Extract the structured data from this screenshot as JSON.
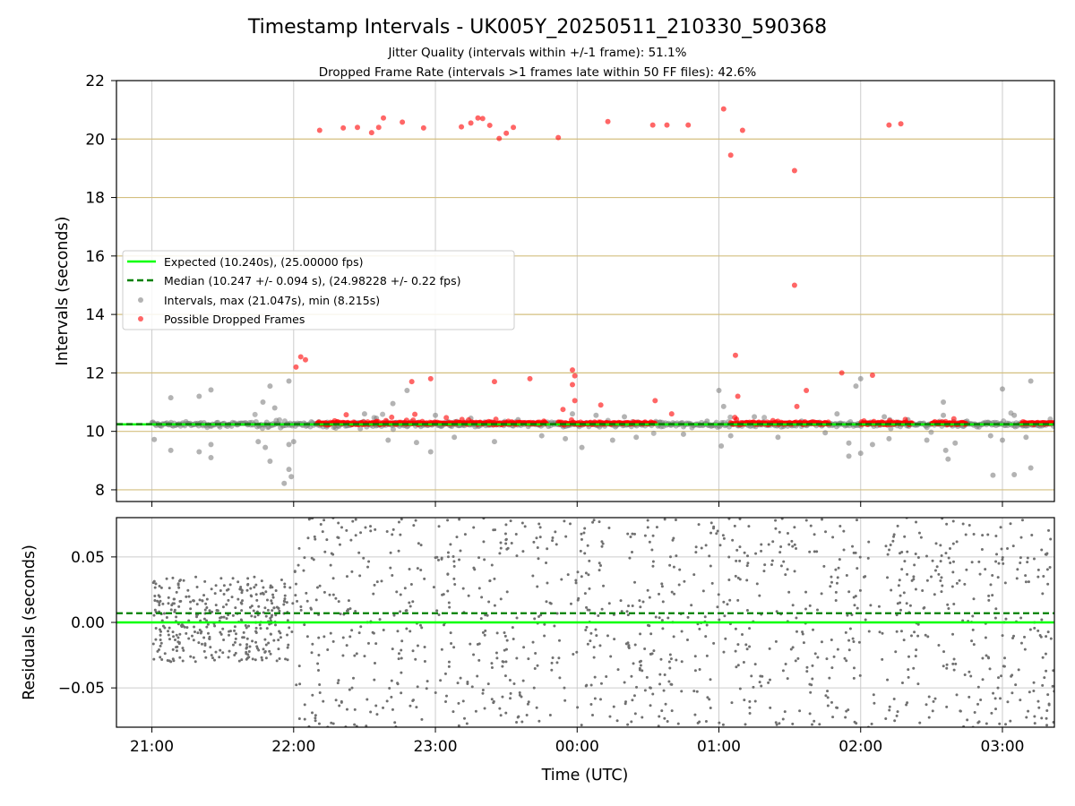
{
  "chart_data": [
    {
      "type": "scatter",
      "title": "Timestamp Intervals - UK005Y_20250511_210330_590368",
      "subtitle_lines": [
        "Jitter Quality (intervals within +/-1 frame): 51.1%",
        "Dropped Frame Rate (intervals >1 frames late within 50 FF files): 42.6%"
      ],
      "xlabel": "",
      "ylabel": "Intervals (seconds)",
      "xlim": [
        "20:45",
        "03:22"
      ],
      "ylim": [
        7.6,
        22.0
      ],
      "yticks": [
        8,
        10,
        12,
        14,
        16,
        18,
        20,
        22
      ],
      "ytick_labels": [
        "8",
        "10",
        "12",
        "14",
        "16",
        "18",
        "20",
        "22"
      ],
      "xticks": [
        "21:00",
        "22:00",
        "23:00",
        "00:00",
        "01:00",
        "02:00",
        "03:00"
      ],
      "grid": true,
      "legend_position": "center-left",
      "colors": {
        "expected": "#00ff00",
        "median": "#008000",
        "intervals": "#808080",
        "dropped": "#ff0000",
        "hline": "#d4bf7f",
        "grid": "#cccccc"
      },
      "lines": [
        {
          "name": "Expected (10.240s), (25.00000 fps)",
          "y": 10.24,
          "style": "solid"
        },
        {
          "name": "Median (10.247 +/- 0.094 s), (24.98228 +/- 0.22 fps)",
          "y": 10.247,
          "style": "dashed"
        }
      ],
      "reference_lines_y": [
        8,
        10,
        12,
        14,
        16,
        18,
        20
      ],
      "series": [
        {
          "name": "Intervals, max (21.047s), min (8.215s)",
          "points": [
            [
              "21:01",
              9.72
            ],
            [
              "21:08",
              11.15
            ],
            [
              "21:08",
              9.35
            ],
            [
              "21:20",
              11.2
            ],
            [
              "21:20",
              9.3
            ],
            [
              "21:25",
              11.42
            ],
            [
              "21:25",
              9.55
            ],
            [
              "21:25",
              9.1
            ],
            [
              "21:45",
              9.65
            ],
            [
              "21:47",
              11.0
            ],
            [
              "21:50",
              11.55
            ],
            [
              "21:48",
              9.45
            ],
            [
              "21:50",
              8.98
            ],
            [
              "21:52",
              10.8
            ],
            [
              "21:56",
              8.22
            ],
            [
              "21:58",
              11.72
            ],
            [
              "21:58",
              9.55
            ],
            [
              "21:58",
              8.7
            ],
            [
              "21:59",
              8.45
            ],
            [
              "22:00",
              9.65
            ],
            [
              "22:14",
              10.15
            ],
            [
              "22:30",
              10.6
            ],
            [
              "22:35",
              10.45
            ],
            [
              "22:40",
              9.7
            ],
            [
              "22:42",
              10.95
            ],
            [
              "22:48",
              11.4
            ],
            [
              "22:52",
              9.62
            ],
            [
              "22:58",
              9.3
            ],
            [
              "23:00",
              10.55
            ],
            [
              "23:08",
              9.8
            ],
            [
              "23:15",
              10.45
            ],
            [
              "23:25",
              9.65
            ],
            [
              "23:35",
              10.4
            ],
            [
              "23:45",
              9.85
            ],
            [
              "23:55",
              9.75
            ],
            [
              "23:58",
              10.6
            ],
            [
              "00:02",
              9.45
            ],
            [
              "00:08",
              10.55
            ],
            [
              "00:15",
              9.7
            ],
            [
              "00:20",
              10.5
            ],
            [
              "00:25",
              9.8
            ],
            [
              "00:35",
              10.3
            ],
            [
              "00:45",
              9.9
            ],
            [
              "00:55",
              10.35
            ],
            [
              "01:00",
              11.4
            ],
            [
              "01:02",
              10.85
            ],
            [
              "01:01",
              9.5
            ],
            [
              "01:05",
              9.85
            ],
            [
              "01:15",
              10.5
            ],
            [
              "01:25",
              9.8
            ],
            [
              "01:35",
              10.35
            ],
            [
              "01:45",
              9.95
            ],
            [
              "01:50",
              10.6
            ],
            [
              "01:55",
              9.6
            ],
            [
              "01:55",
              9.15
            ],
            [
              "01:58",
              11.55
            ],
            [
              "02:00",
              11.8
            ],
            [
              "02:00",
              9.25
            ],
            [
              "02:05",
              9.55
            ],
            [
              "02:10",
              10.5
            ],
            [
              "02:12",
              9.75
            ],
            [
              "02:20",
              10.4
            ],
            [
              "02:28",
              9.7
            ],
            [
              "02:35",
              10.55
            ],
            [
              "02:35",
              11.0
            ],
            [
              "02:36",
              9.35
            ],
            [
              "02:37",
              9.05
            ],
            [
              "02:40",
              9.6
            ],
            [
              "02:45",
              10.35
            ],
            [
              "02:55",
              9.85
            ],
            [
              "02:56",
              8.5
            ],
            [
              "03:00",
              11.45
            ],
            [
              "03:00",
              9.7
            ],
            [
              "03:05",
              10.55
            ],
            [
              "03:05",
              8.52
            ],
            [
              "03:10",
              9.8
            ],
            [
              "03:12",
              11.72
            ],
            [
              "03:12",
              8.75
            ]
          ]
        },
        {
          "name": "Possible Dropped Frames",
          "points": [
            [
              "22:01",
              12.2
            ],
            [
              "22:03",
              12.55
            ],
            [
              "22:05",
              12.45
            ],
            [
              "22:11",
              20.3
            ],
            [
              "22:21",
              20.38
            ],
            [
              "22:27",
              20.4
            ],
            [
              "22:33",
              20.22
            ],
            [
              "22:36",
              20.4
            ],
            [
              "22:38",
              20.72
            ],
            [
              "22:46",
              20.58
            ],
            [
              "22:50",
              11.7
            ],
            [
              "22:55",
              20.38
            ],
            [
              "22:58",
              11.8
            ],
            [
              "23:11",
              20.42
            ],
            [
              "23:15",
              20.55
            ],
            [
              "23:18",
              20.72
            ],
            [
              "23:20",
              20.7
            ],
            [
              "23:23",
              20.47
            ],
            [
              "23:25",
              11.7
            ],
            [
              "23:27",
              20.02
            ],
            [
              "23:30",
              20.2
            ],
            [
              "23:33",
              20.4
            ],
            [
              "23:40",
              11.8
            ],
            [
              "23:52",
              20.05
            ],
            [
              "23:54",
              10.75
            ],
            [
              "23:58",
              12.1
            ],
            [
              "23:58",
              11.6
            ],
            [
              "23:59",
              11.9
            ],
            [
              "23:59",
              11.05
            ],
            [
              "24:13",
              20.6
            ],
            [
              "24:32",
              20.48
            ],
            [
              "24:38",
              20.48
            ],
            [
              "24:47",
              20.48
            ],
            [
              "24:10",
              10.9
            ],
            [
              "24:33",
              11.05
            ],
            [
              "24:40",
              10.6
            ],
            [
              "25:02",
              21.03
            ],
            [
              "25:05",
              19.45
            ],
            [
              "25:07",
              12.6
            ],
            [
              "25:10",
              20.3
            ],
            [
              "25:08",
              11.2
            ],
            [
              "25:32",
              18.92
            ],
            [
              "25:32",
              15.0
            ],
            [
              "25:33",
              10.85
            ],
            [
              "25:37",
              11.4
            ],
            [
              "25:52",
              12.0
            ],
            [
              "26:05",
              11.92
            ],
            [
              "26:12",
              20.48
            ],
            [
              "26:17",
              20.52
            ]
          ],
          "dense_band_y": 10.28
        }
      ]
    },
    {
      "type": "scatter",
      "xlabel": "Time (UTC)",
      "ylabel": "Residuals (seconds)",
      "xlim": [
        "20:45",
        "03:22"
      ],
      "ylim": [
        -0.08,
        0.08
      ],
      "yticks": [
        -0.05,
        0.0,
        0.05
      ],
      "ytick_labels": [
        "−0.05",
        "0.00",
        "0.05"
      ],
      "xticks": [
        "21:00",
        "22:00",
        "23:00",
        "00:00",
        "01:00",
        "02:00",
        "03:00"
      ],
      "grid": true,
      "lines": [
        {
          "name": "Expected",
          "y": 0.0,
          "style": "solid"
        },
        {
          "name": "Median",
          "y": 0.007,
          "style": "dashed"
        }
      ],
      "series": [
        {
          "name": "Residuals",
          "distribution": [
            {
              "from": "21:00",
              "to": "22:00",
              "y_min": -0.03,
              "y_max": 0.035,
              "points": 360
            },
            {
              "from": "22:00",
              "to": "03:22",
              "y_min": -0.08,
              "y_max": 0.08,
              "points": 1150
            }
          ]
        }
      ]
    }
  ]
}
